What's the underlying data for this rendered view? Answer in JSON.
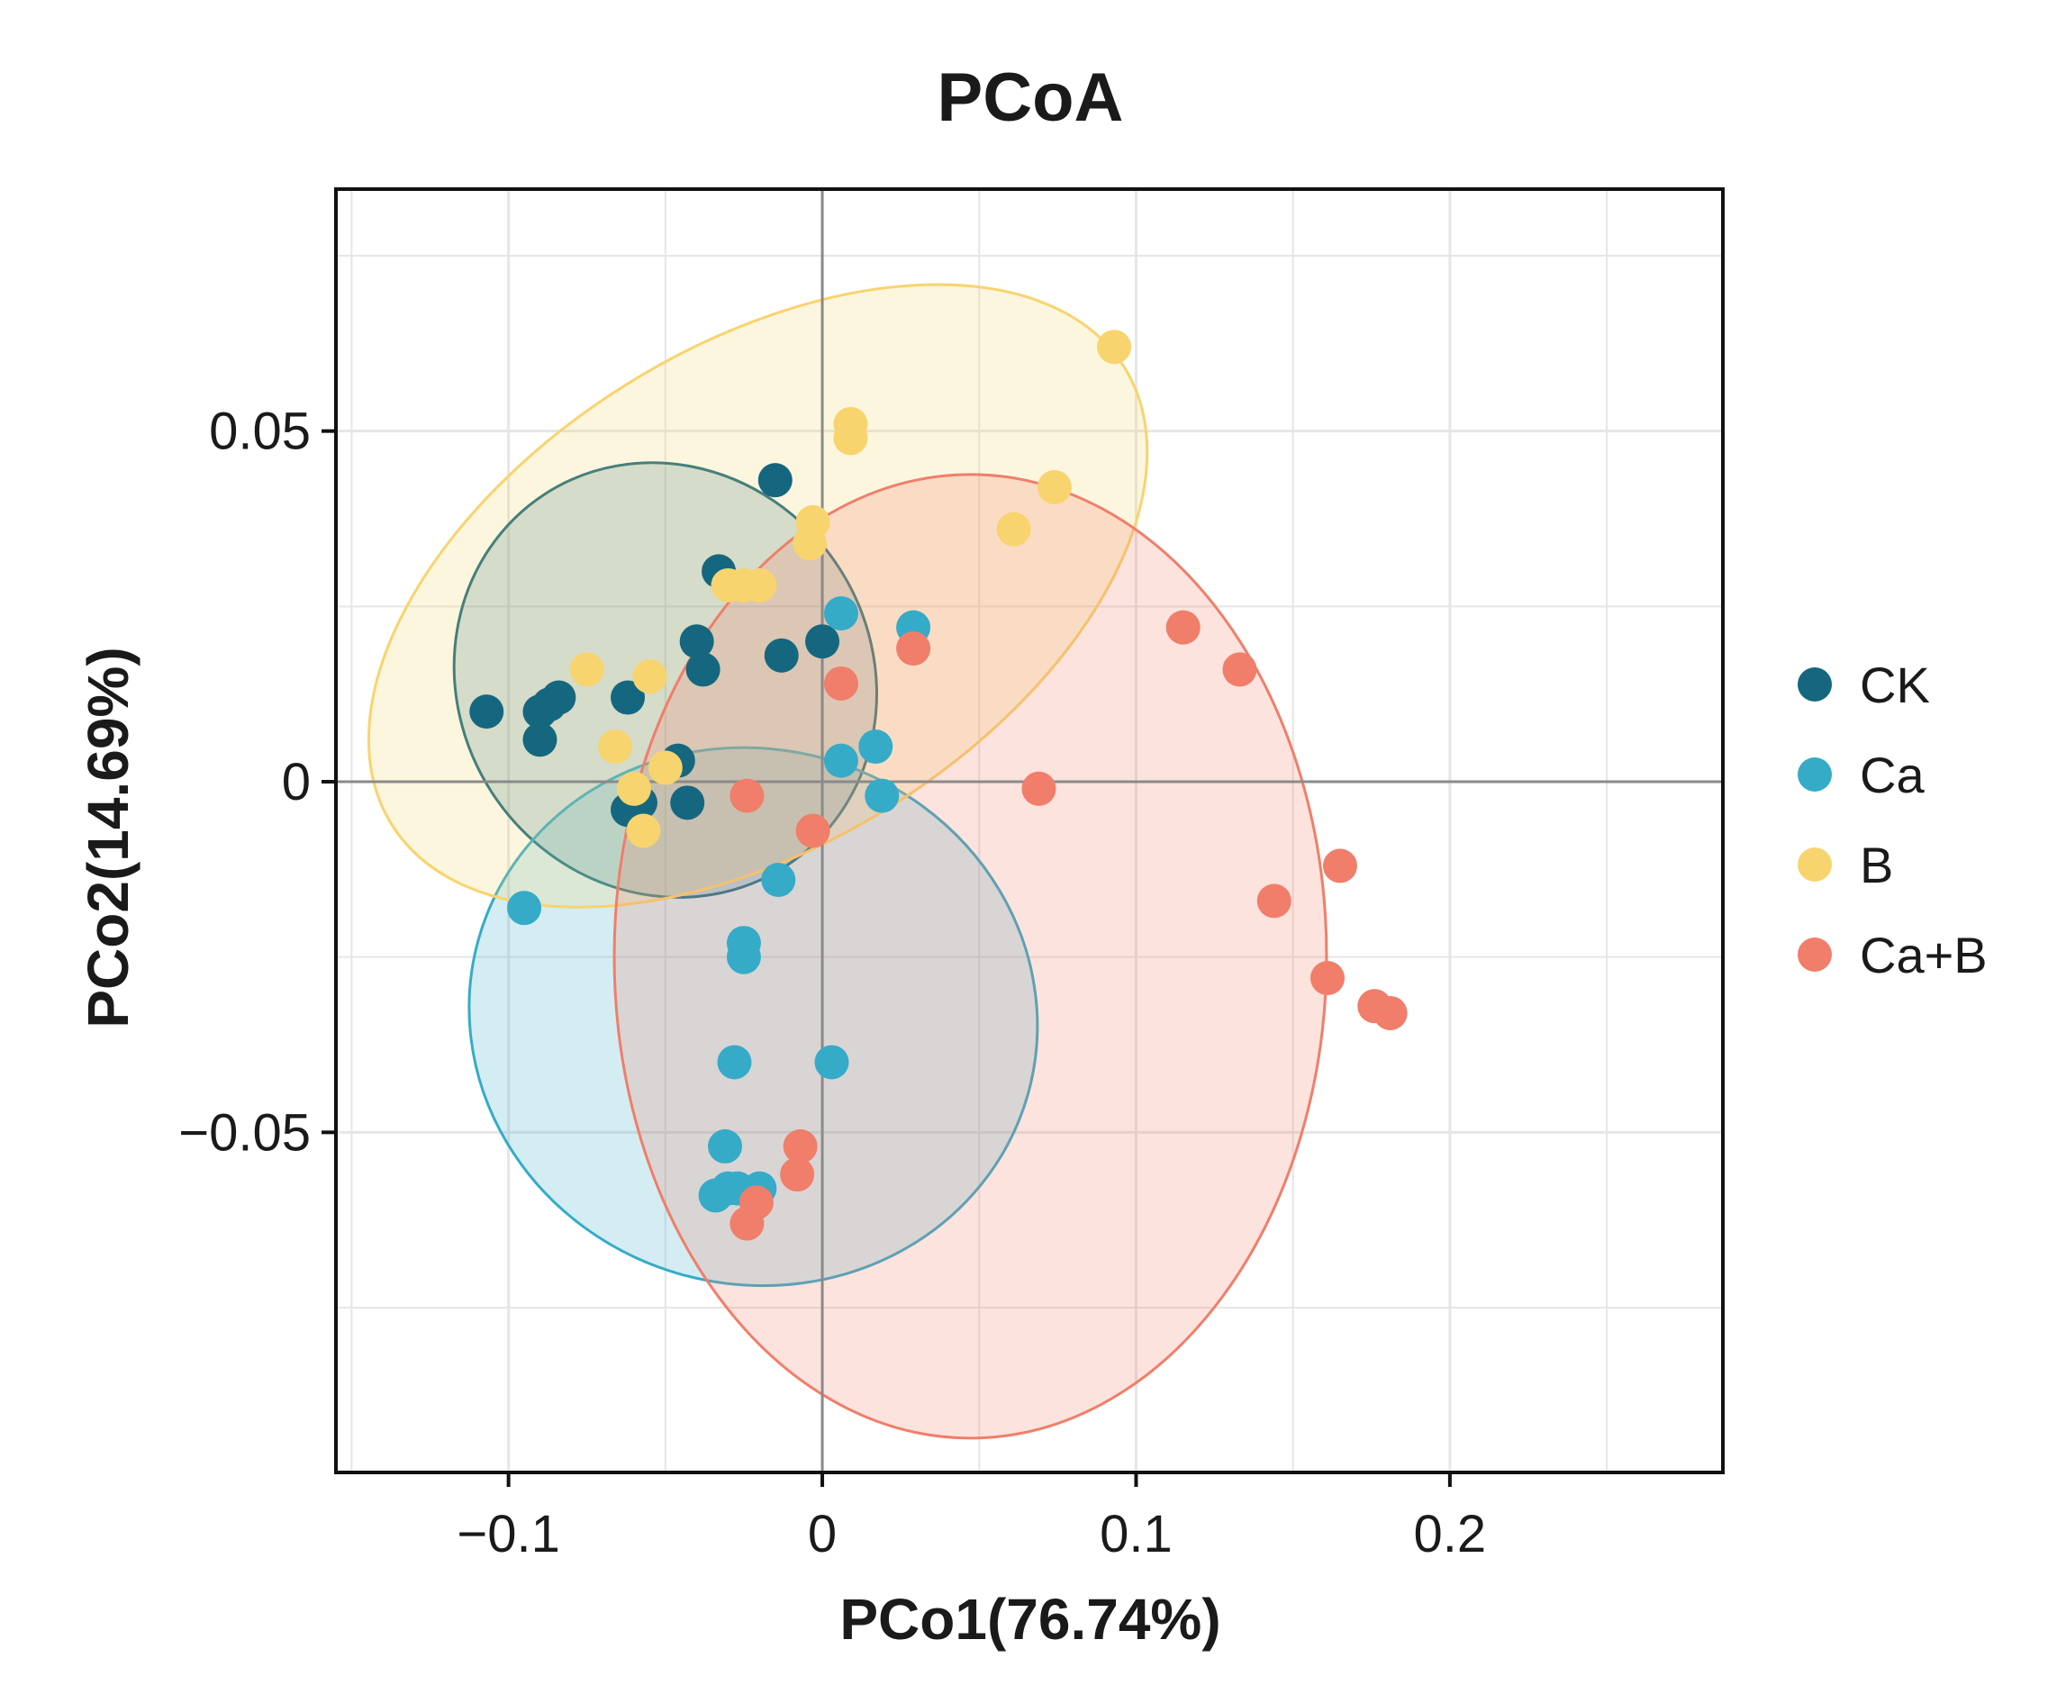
{
  "chart_data": {
    "type": "scatter",
    "title": "PCoA",
    "xlabel": "PCo1(76.74%)",
    "ylabel": "PCo2(14.69%)",
    "xlim": [
      -0.155,
      0.287
    ],
    "ylim": [
      -0.0985,
      0.0845
    ],
    "grid": true,
    "reference_lines": {
      "x": 0,
      "y": 0
    },
    "xticks": [
      {
        "value": -0.1,
        "label": "−0.1"
      },
      {
        "value": 0,
        "label": "0"
      },
      {
        "value": 0.1,
        "label": "0.1"
      },
      {
        "value": 0.2,
        "label": "0.2"
      }
    ],
    "yticks": [
      {
        "value": -0.05,
        "label": "−0.05"
      },
      {
        "value": 0,
        "label": "0"
      },
      {
        "value": 0.05,
        "label": "0.05"
      }
    ],
    "legend_position": "right",
    "series": [
      {
        "name": "CK",
        "color": "#15677f",
        "ellipse": {
          "cx": -0.05,
          "cy": 0.0145,
          "rx": 0.0659,
          "ry": 0.0316,
          "angle_deg": 33
        },
        "points": [
          [
            -0.107,
            0.01
          ],
          [
            -0.09,
            0.01
          ],
          [
            -0.09,
            0.006
          ],
          [
            -0.084,
            0.012
          ],
          [
            -0.087,
            0.011
          ],
          [
            -0.062,
            0.012
          ],
          [
            -0.04,
            0.02
          ],
          [
            -0.038,
            0.016
          ],
          [
            -0.033,
            0.03
          ],
          [
            -0.015,
            0.043
          ],
          [
            -0.013,
            0.018
          ],
          [
            0.0,
            0.02
          ],
          [
            -0.062,
            -0.004
          ],
          [
            -0.046,
            0.003
          ],
          [
            -0.043,
            -0.003
          ],
          [
            -0.058,
            -0.003
          ]
        ]
      },
      {
        "name": "Ca",
        "color": "#35abc8",
        "ellipse": {
          "cx": -0.022,
          "cy": -0.0335,
          "rx": 0.0853,
          "ry": 0.0407,
          "angle_deg": 74
        },
        "points": [
          [
            -0.095,
            -0.018
          ],
          [
            -0.014,
            -0.014
          ],
          [
            -0.025,
            -0.023
          ],
          [
            -0.025,
            -0.025
          ],
          [
            -0.028,
            -0.04
          ],
          [
            0.003,
            -0.04
          ],
          [
            -0.031,
            -0.052
          ],
          [
            -0.034,
            -0.059
          ],
          [
            -0.03,
            -0.058
          ],
          [
            -0.02,
            -0.058
          ],
          [
            -0.027,
            -0.058
          ],
          [
            0.006,
            0.003
          ],
          [
            0.017,
            0.005
          ],
          [
            0.019,
            -0.002
          ],
          [
            0.006,
            0.024
          ],
          [
            0.029,
            0.022
          ]
        ]
      },
      {
        "name": "B",
        "color": "#f8d46e",
        "ellipse": {
          "cx": -0.0205,
          "cy": 0.0265,
          "rx": 0.1376,
          "ry": 0.0355,
          "angle_deg": 32
        },
        "points": [
          [
            0.093,
            0.062
          ],
          [
            0.009,
            0.051
          ],
          [
            0.009,
            0.049
          ],
          [
            0.074,
            0.042
          ],
          [
            0.061,
            0.036
          ],
          [
            -0.003,
            0.037
          ],
          [
            -0.004,
            0.034
          ],
          [
            -0.025,
            0.028
          ],
          [
            -0.02,
            0.028
          ],
          [
            -0.03,
            0.028
          ],
          [
            -0.075,
            0.016
          ],
          [
            -0.055,
            0.015
          ],
          [
            -0.066,
            0.005
          ],
          [
            -0.05,
            0.002
          ],
          [
            -0.06,
            -0.001
          ],
          [
            -0.057,
            -0.007
          ]
        ]
      },
      {
        "name": "Ca+B",
        "color": "#f07e6a",
        "ellipse": {
          "cx": 0.0472,
          "cy": -0.0249,
          "rx": 0.1135,
          "ry": 0.0687,
          "angle_deg": 0
        },
        "points": [
          [
            0.115,
            0.022
          ],
          [
            0.133,
            0.016
          ],
          [
            0.029,
            0.019
          ],
          [
            0.006,
            0.014
          ],
          [
            0.069,
            -0.001
          ],
          [
            -0.024,
            -0.002
          ],
          [
            -0.003,
            -0.007
          ],
          [
            0.165,
            -0.012
          ],
          [
            0.144,
            -0.017
          ],
          [
            0.161,
            -0.028
          ],
          [
            0.176,
            -0.032
          ],
          [
            0.181,
            -0.033
          ],
          [
            -0.007,
            -0.052
          ],
          [
            -0.008,
            -0.056
          ],
          [
            -0.024,
            -0.063
          ],
          [
            -0.021,
            -0.06
          ]
        ]
      }
    ]
  }
}
